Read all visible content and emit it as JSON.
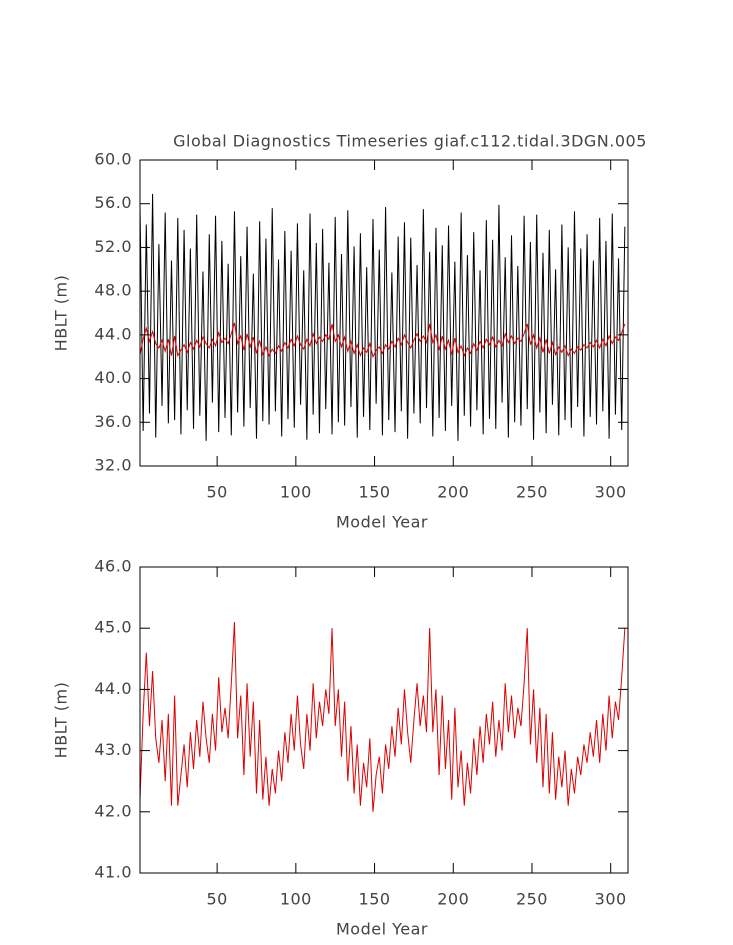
{
  "chart_data": [
    {
      "type": "line",
      "title": "Global Diagnostics Timeseries giaf.c112.tidal.3DGN.005",
      "xlabel": "Model Year",
      "ylabel": "HBLT (m)",
      "xlim": [
        1,
        311
      ],
      "xticks": [
        50,
        100,
        150,
        200,
        250,
        300
      ],
      "ylim": [
        32,
        60
      ],
      "yticks": [
        {
          "value": 32,
          "label": "32.0"
        },
        {
          "value": 36,
          "label": "36.0"
        },
        {
          "value": 40,
          "label": "40.0"
        },
        {
          "value": 44,
          "label": "44.0"
        },
        {
          "value": 48,
          "label": "48.0"
        },
        {
          "value": 52,
          "label": "52.0"
        },
        {
          "value": 56,
          "label": "56.0"
        },
        {
          "value": 60,
          "label": "60.0"
        }
      ],
      "x": [
        1,
        3,
        5,
        7,
        9,
        11,
        13,
        15,
        17,
        19,
        21,
        23,
        25,
        27,
        29,
        31,
        33,
        35,
        37,
        39,
        41,
        43,
        45,
        47,
        49,
        51,
        53,
        55,
        57,
        59,
        61,
        63,
        65,
        67,
        69,
        71,
        73,
        75,
        77,
        79,
        81,
        83,
        85,
        87,
        89,
        91,
        93,
        95,
        97,
        99,
        101,
        103,
        105,
        107,
        109,
        111,
        113,
        115,
        117,
        119,
        121,
        123,
        125,
        127,
        129,
        131,
        133,
        135,
        137,
        139,
        141,
        143,
        145,
        147,
        149,
        151,
        153,
        155,
        157,
        159,
        161,
        163,
        165,
        167,
        169,
        171,
        173,
        175,
        177,
        179,
        181,
        183,
        185,
        187,
        189,
        191,
        193,
        195,
        197,
        199,
        201,
        203,
        205,
        207,
        209,
        211,
        213,
        215,
        217,
        219,
        221,
        223,
        225,
        227,
        229,
        231,
        233,
        235,
        237,
        239,
        241,
        243,
        245,
        247,
        249,
        251,
        253,
        255,
        257,
        259,
        261,
        263,
        265,
        267,
        269,
        271,
        273,
        275,
        277,
        279,
        281,
        283,
        285,
        287,
        289,
        291,
        293,
        295,
        297,
        299,
        301,
        303,
        305,
        307,
        309
      ],
      "series": [
        {
          "color": "#000000",
          "values": [
            55.8,
            35.2,
            54.1,
            36.8,
            56.9,
            34.6,
            52.3,
            37.5,
            55.2,
            35.9,
            50.8,
            36.2,
            54.7,
            34.9,
            53.6,
            37.1,
            51.9,
            35.4,
            55.0,
            36.6,
            49.8,
            34.3,
            53.2,
            37.8,
            54.9,
            35.1,
            52.6,
            36.4,
            50.5,
            34.8,
            55.3,
            36.9,
            51.2,
            35.6,
            53.9,
            37.3,
            49.6,
            34.5,
            54.4,
            36.1,
            52.8,
            35.8,
            55.6,
            37.0,
            50.9,
            34.7,
            53.5,
            36.3,
            51.7,
            35.5,
            54.2,
            37.6,
            49.9,
            34.4,
            55.1,
            36.7,
            52.4,
            35.0,
            53.7,
            37.2,
            50.6,
            34.9,
            54.8,
            36.0,
            51.4,
            35.7,
            55.4,
            37.4,
            52.1,
            34.6,
            53.3,
            36.5,
            50.2,
            35.3,
            54.6,
            37.7,
            51.8,
            34.8,
            55.7,
            36.2,
            49.7,
            35.1,
            53.0,
            37.0,
            54.3,
            34.5,
            52.9,
            36.8,
            50.4,
            35.9,
            55.5,
            37.3,
            51.6,
            34.7,
            53.8,
            36.4,
            52.2,
            35.2,
            54.0,
            37.5,
            50.7,
            34.3,
            55.2,
            36.6,
            51.3,
            35.6,
            53.4,
            37.1,
            49.9,
            34.9,
            54.5,
            36.3,
            52.7,
            35.4,
            55.9,
            37.8,
            51.1,
            34.6,
            53.1,
            36.0,
            50.3,
            35.7,
            54.9,
            37.2,
            52.5,
            34.4,
            55.0,
            36.9,
            51.5,
            35.0,
            53.6,
            37.6,
            50.0,
            34.8,
            54.1,
            36.2,
            52.0,
            35.5,
            55.3,
            37.4,
            51.9,
            34.7,
            53.2,
            36.5,
            50.8,
            35.8,
            54.7,
            37.0,
            52.6,
            34.5,
            55.1,
            36.7,
            51.0,
            35.3,
            53.9
          ]
        },
        {
          "color": "#dd0000",
          "values": [
            42.2,
            43.6,
            44.6,
            43.4,
            44.3,
            43.2,
            42.8,
            43.5,
            42.5,
            43.6,
            42.1,
            43.9,
            42.1,
            42.6,
            43.1,
            42.4,
            43.3,
            42.7,
            43.5,
            42.9,
            43.8,
            43.2,
            42.8,
            43.6,
            43.0,
            44.2,
            43.3,
            43.7,
            43.2,
            44.1,
            45.1,
            43.2,
            43.9,
            42.6,
            44.1,
            42.9,
            43.8,
            42.3,
            43.5,
            42.2,
            42.9,
            42.1,
            42.7,
            42.3,
            43.0,
            42.5,
            43.3,
            42.8,
            43.6,
            43.0,
            43.9,
            43.1,
            42.7,
            43.6,
            43.0,
            44.1,
            43.2,
            43.8,
            43.4,
            44.0,
            43.6,
            45.0,
            43.4,
            44.0,
            42.9,
            43.8,
            42.5,
            43.4,
            42.3,
            43.1,
            42.1,
            42.8,
            42.4,
            43.2,
            42.0,
            42.6,
            42.9,
            42.3,
            43.1,
            42.7,
            43.4,
            42.9,
            43.7,
            43.1,
            44.0,
            43.3,
            42.8,
            43.5,
            44.1,
            43.4,
            43.9,
            43.3,
            45.0,
            43.3,
            44.0,
            42.6,
            43.9,
            42.7,
            43.5,
            42.2,
            43.7,
            42.4,
            43.0,
            42.1,
            42.8,
            42.3,
            43.2,
            42.6,
            43.4,
            42.8,
            43.6,
            43.1,
            43.8,
            42.9,
            43.5,
            43.0,
            44.1,
            43.3,
            43.9,
            43.2,
            43.7,
            43.4,
            44.1,
            45.0,
            43.1,
            44.0,
            42.8,
            43.7,
            42.4,
            43.6,
            42.3,
            43.3,
            42.2,
            42.9,
            42.4,
            43.0,
            42.1,
            42.7,
            42.3,
            42.9,
            42.6,
            43.1,
            42.8,
            43.3,
            42.9,
            43.5,
            42.8,
            43.6,
            43.0,
            43.9,
            43.2,
            43.8,
            43.5,
            44.2,
            45.0
          ]
        }
      ]
    },
    {
      "type": "line",
      "xlabel": "Model Year",
      "ylabel": "HBLT (m)",
      "xlim": [
        1,
        311
      ],
      "xticks": [
        50,
        100,
        150,
        200,
        250,
        300
      ],
      "ylim": [
        41,
        46
      ],
      "yticks": [
        {
          "value": 41,
          "label": "41.0"
        },
        {
          "value": 42,
          "label": "42.0"
        },
        {
          "value": 43,
          "label": "43.0"
        },
        {
          "value": 44,
          "label": "44.0"
        },
        {
          "value": 45,
          "label": "45.0"
        },
        {
          "value": 46,
          "label": "46.0"
        }
      ],
      "x": [
        1,
        3,
        5,
        7,
        9,
        11,
        13,
        15,
        17,
        19,
        21,
        23,
        25,
        27,
        29,
        31,
        33,
        35,
        37,
        39,
        41,
        43,
        45,
        47,
        49,
        51,
        53,
        55,
        57,
        59,
        61,
        63,
        65,
        67,
        69,
        71,
        73,
        75,
        77,
        79,
        81,
        83,
        85,
        87,
        89,
        91,
        93,
        95,
        97,
        99,
        101,
        103,
        105,
        107,
        109,
        111,
        113,
        115,
        117,
        119,
        121,
        123,
        125,
        127,
        129,
        131,
        133,
        135,
        137,
        139,
        141,
        143,
        145,
        147,
        149,
        151,
        153,
        155,
        157,
        159,
        161,
        163,
        165,
        167,
        169,
        171,
        173,
        175,
        177,
        179,
        181,
        183,
        185,
        187,
        189,
        191,
        193,
        195,
        197,
        199,
        201,
        203,
        205,
        207,
        209,
        211,
        213,
        215,
        217,
        219,
        221,
        223,
        225,
        227,
        229,
        231,
        233,
        235,
        237,
        239,
        241,
        243,
        245,
        247,
        249,
        251,
        253,
        255,
        257,
        259,
        261,
        263,
        265,
        267,
        269,
        271,
        273,
        275,
        277,
        279,
        281,
        283,
        285,
        287,
        289,
        291,
        293,
        295,
        297,
        299,
        301,
        303,
        305,
        307,
        309
      ],
      "series": [
        {
          "color": "#dd0000",
          "values": [
            42.2,
            43.6,
            44.6,
            43.4,
            44.3,
            43.2,
            42.8,
            43.5,
            42.5,
            43.6,
            42.1,
            43.9,
            42.1,
            42.6,
            43.1,
            42.4,
            43.3,
            42.7,
            43.5,
            42.9,
            43.8,
            43.2,
            42.8,
            43.6,
            43.0,
            44.2,
            43.3,
            43.7,
            43.2,
            44.1,
            45.1,
            43.2,
            43.9,
            42.6,
            44.1,
            42.9,
            43.8,
            42.3,
            43.5,
            42.2,
            42.9,
            42.1,
            42.7,
            42.3,
            43.0,
            42.5,
            43.3,
            42.8,
            43.6,
            43.0,
            43.9,
            43.1,
            42.7,
            43.6,
            43.0,
            44.1,
            43.2,
            43.8,
            43.4,
            44.0,
            43.6,
            45.0,
            43.4,
            44.0,
            42.9,
            43.8,
            42.5,
            43.4,
            42.3,
            43.1,
            42.1,
            42.8,
            42.4,
            43.2,
            42.0,
            42.6,
            42.9,
            42.3,
            43.1,
            42.7,
            43.4,
            42.9,
            43.7,
            43.1,
            44.0,
            43.3,
            42.8,
            43.5,
            44.1,
            43.4,
            43.9,
            43.3,
            45.0,
            43.3,
            44.0,
            42.6,
            43.9,
            42.7,
            43.5,
            42.2,
            43.7,
            42.4,
            43.0,
            42.1,
            42.8,
            42.3,
            43.2,
            42.6,
            43.4,
            42.8,
            43.6,
            43.1,
            43.8,
            42.9,
            43.5,
            43.0,
            44.1,
            43.3,
            43.9,
            43.2,
            43.7,
            43.4,
            44.1,
            45.0,
            43.1,
            44.0,
            42.8,
            43.7,
            42.4,
            43.6,
            42.3,
            43.3,
            42.2,
            42.9,
            42.4,
            43.0,
            42.1,
            42.7,
            42.3,
            42.9,
            42.6,
            43.1,
            42.8,
            43.3,
            42.9,
            43.5,
            42.8,
            43.6,
            43.0,
            43.9,
            43.2,
            43.8,
            43.5,
            44.2,
            45.0
          ]
        }
      ]
    }
  ]
}
